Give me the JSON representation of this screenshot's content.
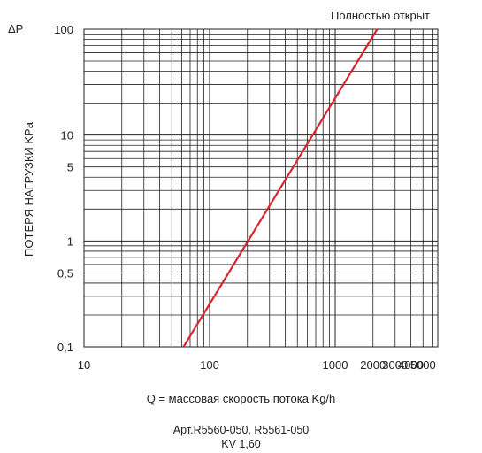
{
  "chart_data": {
    "type": "line",
    "x_scale": "log",
    "y_scale": "log",
    "xlim": [
      10,
      1000
    ],
    "ylim": [
      0.1,
      100
    ],
    "x_tick_labels": [
      {
        "value": 10,
        "label": "10"
      },
      {
        "value": 100,
        "label": "100"
      },
      {
        "value": 1000,
        "label": "1000"
      },
      {
        "value": 2000,
        "label": "2000"
      },
      {
        "value": 3000,
        "label": "3000"
      },
      {
        "value": 4000,
        "label": "4000"
      },
      {
        "value": 5000,
        "label": "5000"
      }
    ],
    "y_tick_labels": [
      {
        "value": 100,
        "label": "100"
      },
      {
        "value": 10,
        "label": "10"
      },
      {
        "value": 5,
        "label": "5"
      },
      {
        "value": 1,
        "label": "1"
      },
      {
        "value": 0.5,
        "label": "0,5"
      },
      {
        "value": 0.1,
        "label": "0,1"
      }
    ],
    "series": [
      {
        "name": "Полностью открыт",
        "color": "#d8262d",
        "points": [
          {
            "x": 62,
            "y": 0.1
          },
          {
            "x": 2160,
            "y": 100
          }
        ]
      }
    ],
    "xlabel": "Q = массовая скорость потока Kg/h",
    "ylabel": "ПОТЕРЯ НАГРУЗКИ KPa",
    "y_axis_symbol": "ΔP",
    "grid": true,
    "subtitle_line1": "Арт.R5560-050, R5561-050",
    "subtitle_line2": "KV 1,60"
  }
}
